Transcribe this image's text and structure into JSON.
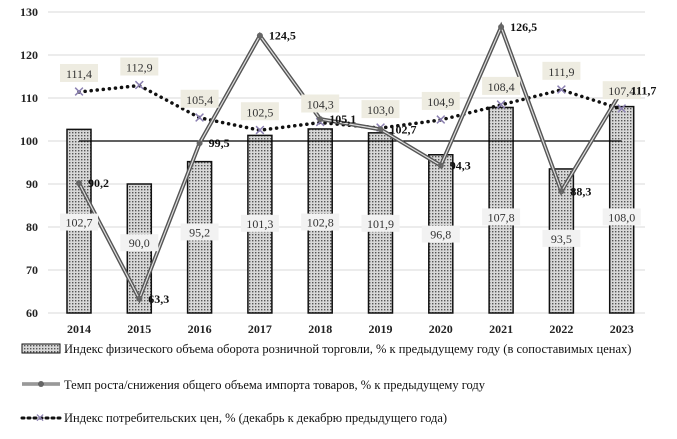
{
  "chart_data": {
    "type": "bar",
    "categories": [
      "2014",
      "2015",
      "2016",
      "2017",
      "2018",
      "2019",
      "2020",
      "2021",
      "2022",
      "2023"
    ],
    "ylim": [
      60,
      130
    ],
    "yticks": [
      60,
      70,
      80,
      90,
      100,
      110,
      120,
      130
    ],
    "grid": true,
    "reference_line": 100,
    "legend_position": "bottom",
    "series": [
      {
        "name": "Индекс физического объема оборота розничной торговли, % к предыдущему году (в сопоставимых ценах)",
        "type": "bar",
        "values": [
          102.7,
          90.0,
          95.2,
          101.3,
          102.8,
          101.9,
          96.8,
          107.8,
          93.5,
          108.0
        ],
        "labels": [
          "102,7",
          "90,0",
          "95,2",
          "101,3",
          "102,8",
          "101,9",
          "96,8",
          "107,8",
          "93,5",
          "108,0"
        ]
      },
      {
        "name": "Темп роста/снижения общего объема импорта товаров, % к предыдущему году",
        "type": "line",
        "values": [
          90.2,
          63.3,
          99.5,
          124.5,
          105.1,
          102.7,
          94.3,
          126.5,
          88.3,
          111.7
        ],
        "labels": [
          "90,2",
          "63,3",
          "99,5",
          "124,5",
          "105,1",
          "102,7",
          "94,3",
          "126,5",
          "88,3",
          "111,7"
        ]
      },
      {
        "name": "Индекс потребительских цен, % (декабрь к декабрю предыдущего года)",
        "type": "line-dotted",
        "values": [
          111.4,
          112.9,
          105.4,
          102.5,
          104.3,
          103.0,
          104.9,
          108.4,
          111.9,
          107.4
        ],
        "labels": [
          "111,4",
          "112,9",
          "105,4",
          "102,5",
          "104,3",
          "103,0",
          "104,9",
          "108,4",
          "111,9",
          "107,4"
        ]
      }
    ],
    "colors": {
      "bar_fill": "#b8b8b8",
      "import_line": "#666666",
      "cpi_marker": "#8a7fb0",
      "label_bg": "#eeece1"
    }
  }
}
